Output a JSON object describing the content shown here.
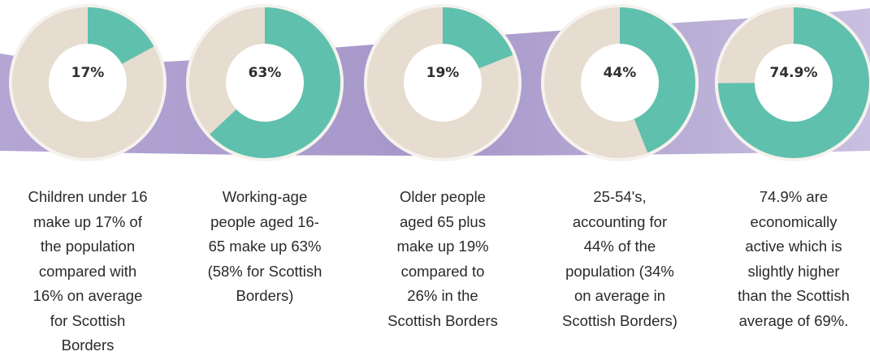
{
  "colors": {
    "accent": "#5fc0ad",
    "track": "#e6dccf",
    "hole": "#ffffff",
    "band": "#a294c6",
    "ring": "#f5f2ee"
  },
  "chart_data": [
    {
      "type": "pie",
      "value_label": "17%",
      "values": [
        17,
        83
      ],
      "caption_lines": [
        "Children under 16",
        "make up 17% of",
        "the population",
        "compared with",
        "16% on average",
        "for Scottish",
        "Borders"
      ]
    },
    {
      "type": "pie",
      "value_label": "63%",
      "values": [
        63,
        37
      ],
      "caption_lines": [
        "Working-age",
        "people aged 16-",
        "65 make up 63%",
        "(58% for Scottish",
        "Borders)"
      ]
    },
    {
      "type": "pie",
      "value_label": "19%",
      "values": [
        19,
        81
      ],
      "caption_lines": [
        "Older people",
        "aged 65 plus",
        "make up 19%",
        "compared to",
        "26% in the",
        "Scottish Borders"
      ]
    },
    {
      "type": "pie",
      "value_label": "44%",
      "values": [
        44,
        56
      ],
      "caption_lines": [
        "25-54's,",
        "accounting for",
        "44% of the",
        "population (34%",
        "on average in",
        "Scottish Borders)"
      ]
    },
    {
      "type": "pie",
      "value_label": "74.9%",
      "values": [
        74.9,
        25.1
      ],
      "caption_lines": [
        "74.9% are",
        "economically",
        "active which is",
        "slightly higher",
        "than the Scottish",
        "average of 69%."
      ]
    }
  ]
}
